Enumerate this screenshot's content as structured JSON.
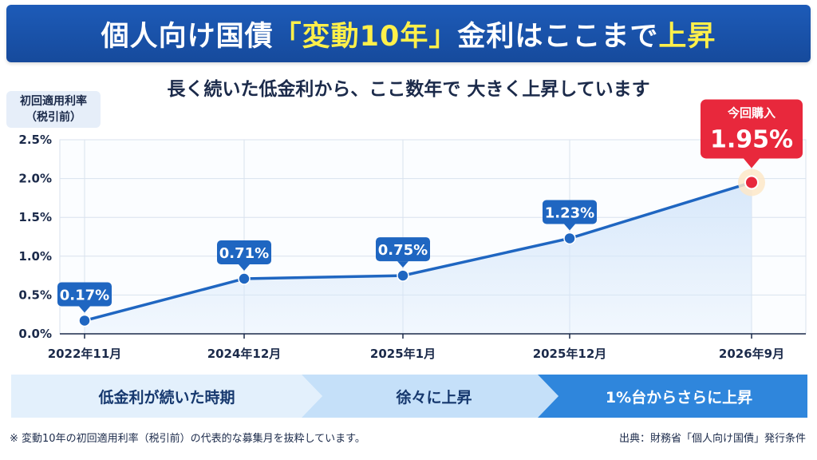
{
  "header": {
    "title_part1": "個人向け国債",
    "title_part2": "「変動10年」",
    "title_part3": "金利はここまで",
    "title_part4": "上昇"
  },
  "subtitle": "長く続いた低金利から、ここ数年で 大きく上昇しています",
  "ylabel": {
    "line1": "初回適用利率",
    "line2": "（税引前）"
  },
  "chart_data": {
    "type": "line",
    "categories": [
      "2022年11月",
      "2024年12月",
      "2025年1月",
      "2025年12月",
      "2026年9月"
    ],
    "values": [
      0.17,
      0.71,
      0.75,
      1.23,
      1.95
    ],
    "data_labels": [
      "0.17%",
      "0.71%",
      "0.75%",
      "1.23%",
      "1.95%"
    ],
    "ylim": [
      0,
      2.5
    ],
    "yticks": [
      "0.0%",
      "0.5%",
      "1.0%",
      "1.5%",
      "2.0%",
      "2.5%"
    ],
    "grid": true,
    "area_fill": true,
    "highlight_label": "今回購入",
    "colors": {
      "line": "#1f66c1",
      "point": "#1f66c1",
      "label_bg": "#1f66c1",
      "highlight": "#e8283c",
      "area": "#d6e7fa",
      "grid": "#d9e2ee"
    }
  },
  "phases": [
    {
      "label": "低金利が続いた時期"
    },
    {
      "label": "徐々に上昇"
    },
    {
      "label": "1%台からさらに上昇"
    }
  ],
  "footnote": "※ 変動10年の初回適用利率（税引前）の代表的な募集月を抜粋しています。",
  "source": "出典：財務省「個人向け国債」発行条件"
}
